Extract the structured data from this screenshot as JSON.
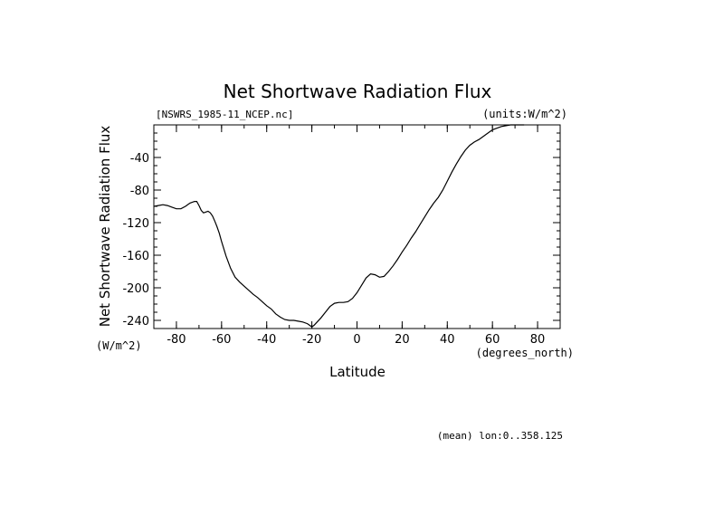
{
  "chart_data": {
    "type": "line",
    "title": "Net Shortwave Radiation Flux",
    "file_label": "[NSWRS_1985-11_NCEP.nc]",
    "units_label": "(units:W/m^2)",
    "xlabel": "Latitude",
    "x_units": "(degrees_north)",
    "ylabel": "Net Shortwave Radiation Flux",
    "y_units": "(W/m^2)",
    "footnote": "(mean) lon:0..358.125",
    "xlim": [
      -90,
      90
    ],
    "ylim": [
      -250,
      0
    ],
    "x_ticks": [
      -80,
      -60,
      -40,
      -20,
      0,
      20,
      40,
      60,
      80
    ],
    "x_tick_labels": [
      "-80",
      "-60",
      "-40",
      "-20",
      "0",
      "20",
      "40",
      "60",
      "80"
    ],
    "y_ticks": [
      -40,
      -80,
      -120,
      -160,
      -200,
      -240
    ],
    "y_tick_labels": [
      "-40",
      "-80",
      "-120",
      "-160",
      "-200",
      "-240"
    ],
    "grid": false,
    "series": [
      {
        "x": [
          -90,
          -88,
          -86,
          -84,
          -82,
          -80,
          -78,
          -76,
          -74,
          -72,
          -71,
          -70,
          -69,
          -68,
          -67,
          -66,
          -65,
          -64,
          -63,
          -62,
          -61,
          -60,
          -58,
          -56,
          -54,
          -52,
          -50,
          -48,
          -46,
          -44,
          -42,
          -40,
          -38,
          -36,
          -34,
          -32,
          -30,
          -28,
          -26,
          -24,
          -22,
          -21,
          -20,
          -19,
          -18,
          -16,
          -14,
          -12,
          -10,
          -8,
          -6,
          -4,
          -2,
          0,
          2,
          4,
          6,
          8,
          10,
          12,
          14,
          16,
          18,
          20,
          22,
          24,
          26,
          28,
          30,
          32,
          34,
          36,
          38,
          40,
          42,
          44,
          46,
          48,
          50,
          52,
          54,
          56,
          58,
          60,
          62,
          64,
          66,
          68,
          70,
          72,
          74
        ],
        "y": [
          -100,
          -99,
          -98,
          -99,
          -101,
          -103,
          -103,
          -100,
          -96,
          -94,
          -94,
          -99,
          -105,
          -108,
          -107,
          -106,
          -108,
          -112,
          -118,
          -125,
          -133,
          -143,
          -161,
          -176,
          -187,
          -193,
          -198,
          -203,
          -208,
          -212,
          -217,
          -222,
          -226,
          -232,
          -236,
          -239,
          -240,
          -240,
          -241,
          -242,
          -244,
          -246,
          -248,
          -246,
          -243,
          -237,
          -230,
          -223,
          -219,
          -218,
          -218,
          -217,
          -213,
          -206,
          -197,
          -188,
          -183,
          -184,
          -187,
          -186,
          -180,
          -173,
          -165,
          -156,
          -148,
          -139,
          -131,
          -122,
          -113,
          -104,
          -96,
          -89,
          -80,
          -69,
          -58,
          -48,
          -39,
          -31,
          -25,
          -21,
          -18,
          -14,
          -10,
          -6,
          -4,
          -2,
          -1,
          0,
          0,
          0,
          0
        ]
      }
    ]
  }
}
